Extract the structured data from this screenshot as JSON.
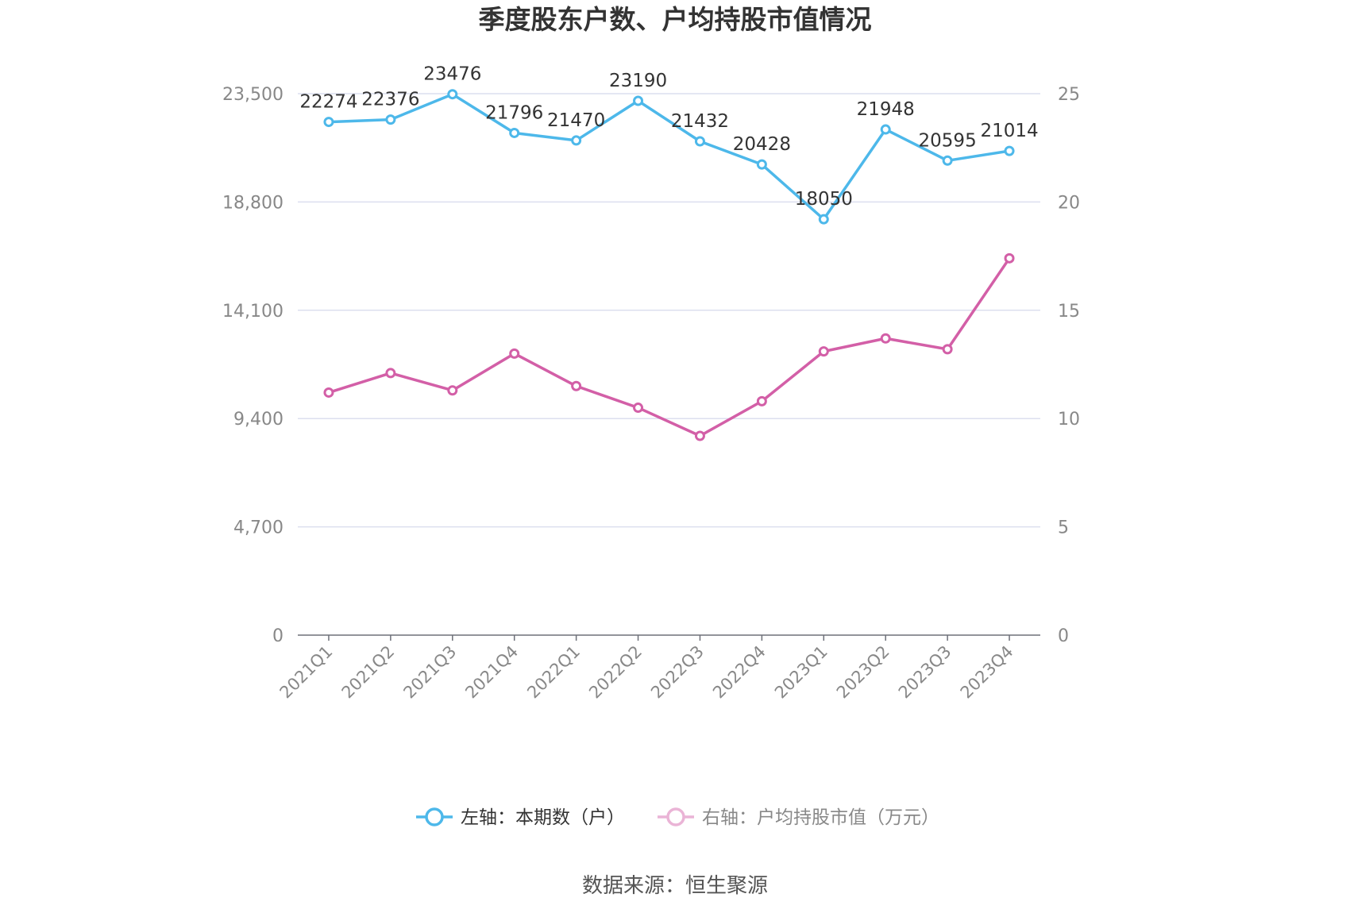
{
  "chart_data": {
    "type": "line",
    "title": "季度股东户数、户均持股市值情况",
    "categories": [
      "2021Q1",
      "2021Q2",
      "2021Q3",
      "2021Q4",
      "2022Q1",
      "2022Q2",
      "2022Q3",
      "2022Q4",
      "2023Q1",
      "2023Q2",
      "2023Q3",
      "2023Q4"
    ],
    "left_axis": {
      "ticks": [
        "0",
        "4,700",
        "9,400",
        "14,100",
        "18,800",
        "23,500"
      ],
      "ylim": [
        0,
        23500
      ]
    },
    "right_axis": {
      "ticks": [
        "0",
        "5",
        "10",
        "15",
        "20",
        "25"
      ],
      "ylim": [
        0,
        25
      ]
    },
    "series": [
      {
        "name": "左轴：本期数（户）",
        "axis": "left",
        "color": "#4db8ea",
        "values": [
          22274,
          22376,
          23476,
          21796,
          21470,
          23190,
          21432,
          20428,
          18050,
          21948,
          20595,
          21014
        ],
        "labels": [
          "22274",
          "22376",
          "23476",
          "21796",
          "21470",
          "23190",
          "21432",
          "20428",
          "18050",
          "21948",
          "20595",
          "21014"
        ]
      },
      {
        "name": "右轴：户均持股市值（万元）",
        "axis": "right",
        "color": "#d35fa7",
        "values": [
          11.2,
          12.1,
          11.3,
          13.0,
          11.5,
          10.5,
          9.2,
          10.8,
          13.1,
          13.7,
          13.2,
          17.4
        ]
      }
    ],
    "grid": true,
    "legend_position": "bottom"
  },
  "source": "数据来源：恒生聚源"
}
